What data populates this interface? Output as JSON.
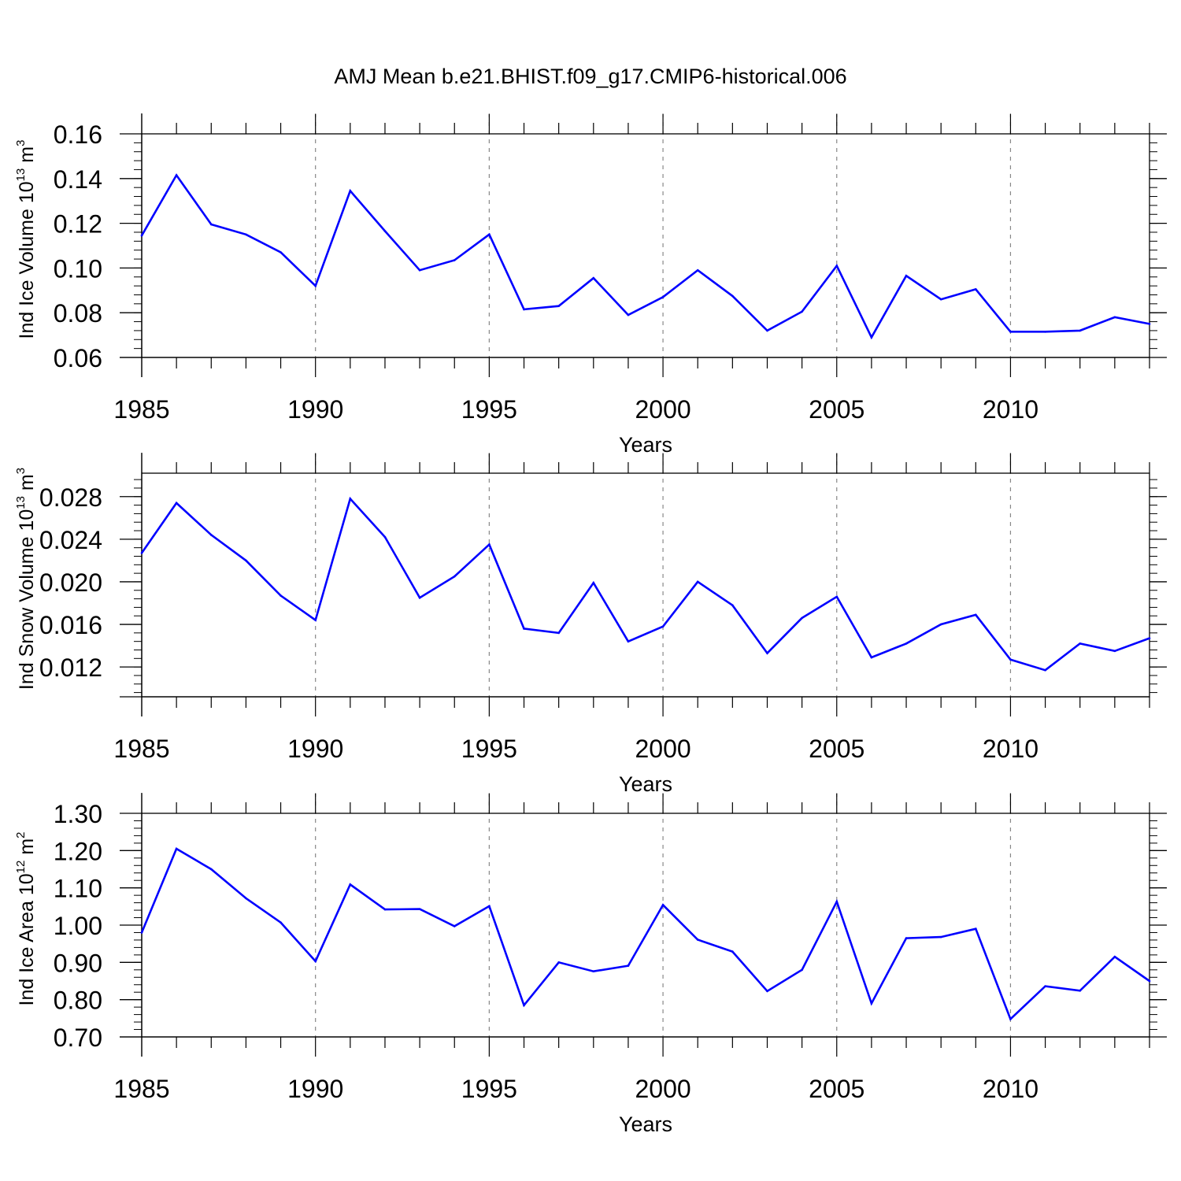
{
  "title": "AMJ Mean b.e21.BHIST.f09_g17.CMIP6-historical.006",
  "line_color": "#0000ff",
  "chart_data": [
    {
      "type": "line",
      "xlabel": "Years",
      "ylabel": {
        "main": "Ind Ice Volume 10",
        "exp": "13",
        "unit": " m",
        "unit_exp": "3"
      },
      "xlim": [
        1985,
        2014
      ],
      "ylim": [
        0.06,
        0.16
      ],
      "xticks": [
        1985,
        1990,
        1995,
        2000,
        2005,
        2010
      ],
      "xtick_labels": [
        "1985",
        "1990",
        "1995",
        "2000",
        "2005",
        "2010"
      ],
      "yticks": [
        0.06,
        0.08,
        0.1,
        0.12,
        0.14,
        0.16
      ],
      "ytick_labels": [
        "0.06",
        "0.08",
        "0.10",
        "0.12",
        "0.14",
        "0.16"
      ],
      "y_range_padding": [
        0.0,
        0.009
      ],
      "grid": "vertical-dashed",
      "x": [
        1985,
        1986,
        1987,
        1988,
        1989,
        1990,
        1991,
        1992,
        1993,
        1994,
        1995,
        1996,
        1997,
        1998,
        1999,
        2000,
        2001,
        2002,
        2003,
        2004,
        2005,
        2006,
        2007,
        2008,
        2009,
        2010,
        2011,
        2012,
        2013,
        2014
      ],
      "values": [
        0.1145,
        0.1415,
        0.1195,
        0.115,
        0.107,
        0.092,
        0.1345,
        0.1165,
        0.099,
        0.1035,
        0.115,
        0.0815,
        0.083,
        0.0955,
        0.079,
        0.087,
        0.099,
        0.0875,
        0.072,
        0.0805,
        0.101,
        0.069,
        0.0965,
        0.086,
        0.0905,
        0.0715,
        0.0715,
        0.072,
        0.078,
        0.075
      ]
    },
    {
      "type": "line",
      "xlabel": "Years",
      "ylabel": {
        "main": "Ind Snow Volume 10",
        "exp": "13",
        "unit": " m",
        "unit_exp": "3"
      },
      "xlim": [
        1985,
        2014
      ],
      "ylim": [
        0.0092,
        0.0302
      ],
      "xticks": [
        1985,
        1990,
        1995,
        2000,
        2005,
        2010
      ],
      "xtick_labels": [
        "1985",
        "1990",
        "1995",
        "2000",
        "2005",
        "2010"
      ],
      "yticks": [
        0.012,
        0.016,
        0.02,
        0.024,
        0.028
      ],
      "ytick_labels": [
        "0.012",
        "0.016",
        "0.020",
        "0.024",
        "0.028"
      ],
      "y_range_padding": [
        0.0,
        0.0018
      ],
      "grid": "vertical-dashed",
      "x": [
        1985,
        1986,
        1987,
        1988,
        1989,
        1990,
        1991,
        1992,
        1993,
        1994,
        1995,
        1996,
        1997,
        1998,
        1999,
        2000,
        2001,
        2002,
        2003,
        2004,
        2005,
        2006,
        2007,
        2008,
        2009,
        2010,
        2011,
        2012,
        2013,
        2014
      ],
      "values": [
        0.0227,
        0.0274,
        0.0244,
        0.022,
        0.0187,
        0.0164,
        0.0278,
        0.0242,
        0.0185,
        0.0205,
        0.0235,
        0.0156,
        0.0152,
        0.0199,
        0.0144,
        0.0158,
        0.02,
        0.0178,
        0.0133,
        0.0166,
        0.0186,
        0.0129,
        0.0142,
        0.016,
        0.0169,
        0.0127,
        0.0117,
        0.0142,
        0.0135,
        0.0147
      ]
    },
    {
      "type": "line",
      "xlabel": "Years",
      "ylabel": {
        "main": "Ind Ice Area 10",
        "exp": "12",
        "unit": " m",
        "unit_exp": "2"
      },
      "xlim": [
        1985,
        2014
      ],
      "ylim": [
        0.7,
        1.3
      ],
      "xticks": [
        1985,
        1990,
        1995,
        2000,
        2005,
        2010
      ],
      "xtick_labels": [
        "1985",
        "1990",
        "1995",
        "2000",
        "2005",
        "2010"
      ],
      "yticks": [
        0.7,
        0.8,
        0.9,
        1.0,
        1.1,
        1.2,
        1.3
      ],
      "ytick_labels": [
        "0.70",
        "0.80",
        "0.90",
        "1.00",
        "1.10",
        "1.20",
        "1.30"
      ],
      "y_range_padding": [
        0.0,
        0.055
      ],
      "grid": "vertical-dashed",
      "x": [
        1985,
        1986,
        1987,
        1988,
        1989,
        1990,
        1991,
        1992,
        1993,
        1994,
        1995,
        1996,
        1997,
        1998,
        1999,
        2000,
        2001,
        2002,
        2003,
        2004,
        2005,
        2006,
        2007,
        2008,
        2009,
        2010,
        2011,
        2012,
        2013,
        2014
      ],
      "values": [
        0.98,
        1.205,
        1.15,
        1.072,
        1.007,
        0.903,
        1.109,
        1.042,
        1.043,
        0.997,
        1.051,
        0.785,
        0.9,
        0.876,
        0.891,
        1.054,
        0.961,
        0.929,
        0.823,
        0.88,
        1.063,
        0.79,
        0.965,
        0.968,
        0.99,
        0.748,
        0.836,
        0.824,
        0.915,
        0.85
      ]
    }
  ]
}
